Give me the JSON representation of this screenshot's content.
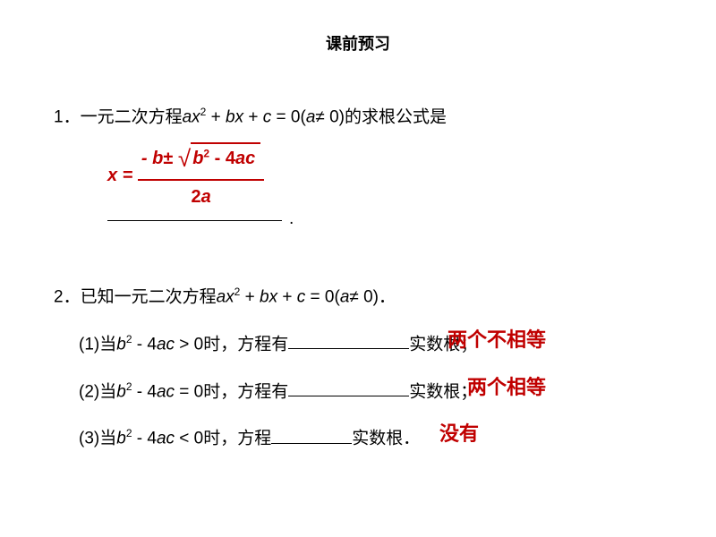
{
  "title": "课前预习",
  "q1": {
    "number": "1．",
    "text_before": "一元二次方程",
    "expr_a": "a",
    "expr_x": "x",
    "expr_plus1": " + ",
    "expr_b": "b",
    "expr_plus2": " + ",
    "expr_c": "c",
    "expr_eq": " = 0(",
    "expr_a2": "a",
    "expr_ne": "≠ 0)的求根公式是",
    "formula": {
      "x_eq": "x = ",
      "neg_b": "- b",
      "pm": "±",
      "b2": "b",
      "minus": " - 4",
      "ac": "ac",
      "den_2": "2",
      "den_a": "a"
    },
    "period": "."
  },
  "q2": {
    "number": "2．",
    "text_before": "已知一元二次方程",
    "expr_a": "a",
    "expr_x": "x",
    "expr_plus1": " + ",
    "expr_b": "b",
    "expr_plus2": " + ",
    "expr_c": "c",
    "expr_eq": " = 0(",
    "expr_a2": "a",
    "expr_ne": "≠ 0)．",
    "sub1": {
      "prefix": "(1)当",
      "b": "b",
      "minus4": " - 4",
      "ac": "ac",
      "cond": " > 0时，方程有",
      "answer": "两个不相等",
      "suffix": "实数根；"
    },
    "sub2": {
      "prefix": "(2)当",
      "b": "b",
      "minus4": " - 4",
      "ac": "ac",
      "cond": " = 0时，方程有",
      "answer": "两个相等",
      "suffix": "实数根；"
    },
    "sub3": {
      "prefix": "(3)当",
      "b": "b",
      "minus4": " - 4",
      "ac": "ac",
      "cond": " < 0时，方程",
      "answer": "没有",
      "suffix": "实数根．"
    }
  },
  "colors": {
    "answer": "#c00000",
    "text": "#000000",
    "background": "#ffffff"
  }
}
